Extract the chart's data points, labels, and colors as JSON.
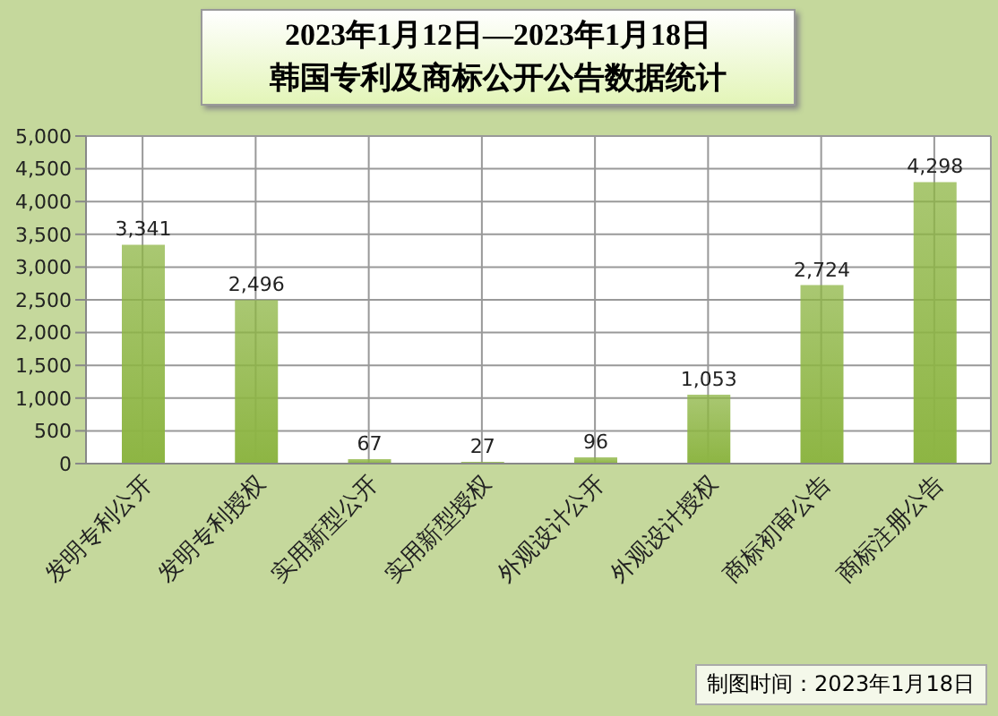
{
  "chart_data": {
    "type": "bar",
    "title": "2023年1月12日—2023年1月18日",
    "subtitle": "韩国专利及商标公开公告数据统计",
    "categories": [
      "发明专利公开",
      "发明专利授权",
      "实用新型公开",
      "实用新型授权",
      "外观设计公开",
      "外观设计授权",
      "商标初审公告",
      "商标注册公告"
    ],
    "values": [
      3341,
      2496,
      67,
      27,
      96,
      1053,
      2724,
      4298
    ],
    "value_labels": [
      "3,341",
      "2,496",
      "67",
      "27",
      "96",
      "1,053",
      "2,724",
      "4,298"
    ],
    "color": "#8db543",
    "ylim": [
      0,
      5000
    ],
    "yticks": [
      0,
      {
        "value": 500,
        "label": "500"
      },
      {
        "value": 1000,
        "label": "1,000"
      },
      {
        "value": 1500,
        "label": "1,500"
      },
      {
        "value": 2000,
        "label": "2,000"
      },
      {
        "value": 2500,
        "label": "2,500"
      },
      {
        "value": 3000,
        "label": "3,000"
      },
      {
        "value": 3500,
        "label": "3,500"
      },
      {
        "value": 4000,
        "label": "4,000"
      },
      {
        "value": 4500,
        "label": "4,500"
      },
      {
        "value": 5000,
        "label": "5,000"
      }
    ],
    "grid": true,
    "annotations": [
      "制图时间：2023年1月18日"
    ]
  }
}
